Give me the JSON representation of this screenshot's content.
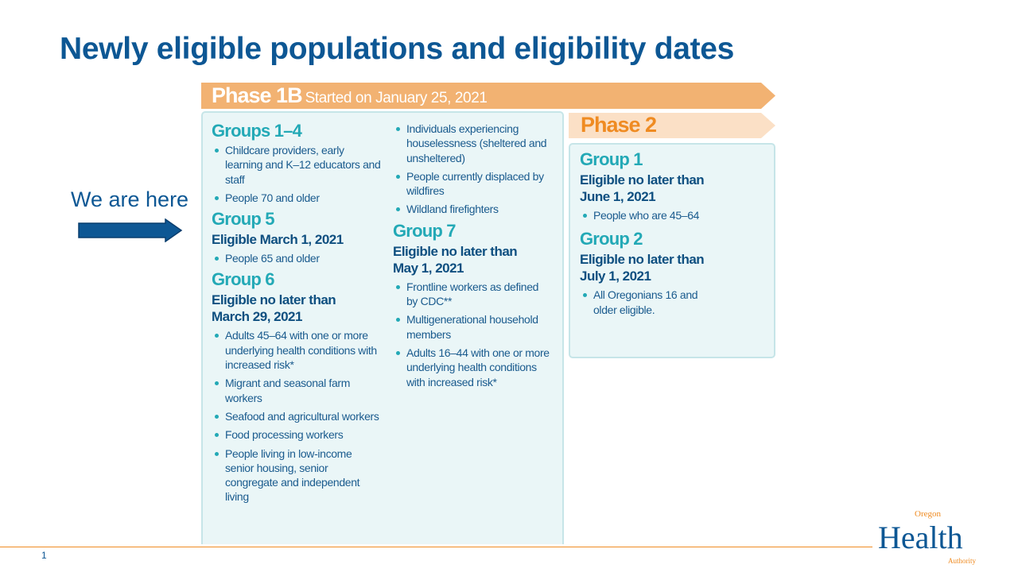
{
  "title": "Newly eligible populations and eligibility dates",
  "marker": {
    "label": "We are here"
  },
  "phase1b": {
    "name": "Phase 1B",
    "started": "Started on January 25, 2021",
    "col1": [
      {
        "heading": "Groups 1–4",
        "eligible": "",
        "items": [
          "Childcare providers, early learning and K–12 educators and staff",
          "People 70 and older"
        ]
      },
      {
        "heading": "Group 5",
        "eligible": "Eligible March 1, 2021",
        "items": [
          "People 65 and older"
        ]
      },
      {
        "heading": "Group 6",
        "eligible": "Eligible no later than March 29, 2021",
        "items": [
          "Adults 45–64 with one or more underlying health conditions with increased risk*",
          "Migrant and seasonal farm workers",
          "Seafood and agricultural workers",
          "Food processing workers",
          "People living in low-income senior housing, senior congregate and independent living"
        ]
      }
    ],
    "col2_items": [
      "Individuals experiencing houselessness (sheltered and unsheltered)",
      "People currently displaced by wildfires",
      "Wildland firefighters"
    ],
    "group7": {
      "heading": "Group 7",
      "eligible": "Eligible no later than May 1, 2021",
      "items": [
        "Frontline workers as defined by CDC**",
        "Multigenerational household members",
        "Adults 16–44 with one or more underlying health conditions with increased risk*"
      ]
    }
  },
  "phase2": {
    "name": "Phase 2",
    "groups": [
      {
        "heading": "Group 1",
        "eligible": "Eligible no later than June 1, 2021",
        "items": [
          "People who are 45–64"
        ]
      },
      {
        "heading": "Group 2",
        "eligible": "Eligible no later than July 1, 2021",
        "items": [
          "All Oregonians 16 and older eligible."
        ]
      }
    ]
  },
  "footer": {
    "page_number": "1",
    "logo": {
      "top": "Oregon",
      "main": "Health",
      "bottom": "Authority"
    }
  },
  "colors": {
    "title": "#0d5794",
    "phase1b": "#f2b272",
    "phase2": "#fbe0c6",
    "group_heading": "#23a9b6",
    "accent": "#ef8b22"
  }
}
